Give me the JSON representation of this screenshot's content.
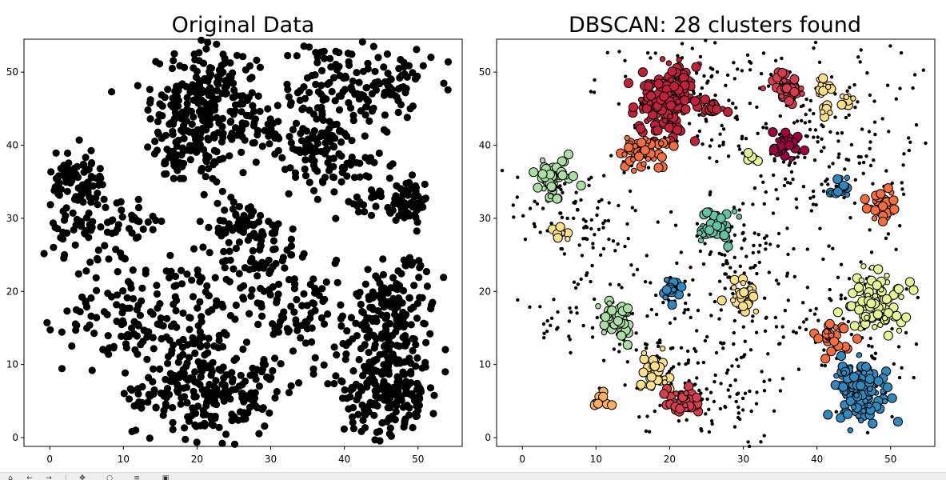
{
  "chart_data": [
    {
      "type": "scatter",
      "title": "Original Data",
      "xlabel": "",
      "ylabel": "",
      "xlim": [
        -3.5,
        56
      ],
      "ylim": [
        -1.2,
        54.5
      ],
      "xticks": [
        0,
        10,
        20,
        30,
        40,
        50
      ],
      "yticks": [
        0,
        10,
        20,
        30,
        40,
        50
      ],
      "grid": false,
      "marker_color": "#000000",
      "clusters": [
        {
          "center": [
            21,
            46
          ],
          "spread": 3.6,
          "n": 220
        },
        {
          "center": [
            18,
            39
          ],
          "spread": 2.2,
          "n": 70
        },
        {
          "center": [
            27,
            45
          ],
          "spread": 3.0,
          "n": 40
        },
        {
          "center": [
            38,
            48
          ],
          "spread": 3.5,
          "n": 90
        },
        {
          "center": [
            46,
            48
          ],
          "spread": 3.0,
          "n": 70
        },
        {
          "center": [
            36,
            40
          ],
          "spread": 3.0,
          "n": 100
        },
        {
          "center": [
            43,
            35
          ],
          "spread": 3.0,
          "n": 50
        },
        {
          "center": [
            49,
            32
          ],
          "spread": 1.8,
          "n": 50
        },
        {
          "center": [
            4,
            35
          ],
          "spread": 1.8,
          "n": 80
        },
        {
          "center": [
            4,
            28
          ],
          "spread": 2.3,
          "n": 40
        },
        {
          "center": [
            10,
            28
          ],
          "spread": 2.6,
          "n": 40
        },
        {
          "center": [
            26,
            29
          ],
          "spread": 1.6,
          "n": 60
        },
        {
          "center": [
            30,
            25
          ],
          "spread": 3.0,
          "n": 40
        },
        {
          "center": [
            22,
            20
          ],
          "spread": 4.0,
          "n": 70
        },
        {
          "center": [
            33,
            19
          ],
          "spread": 3.5,
          "n": 70
        },
        {
          "center": [
            13,
            16
          ],
          "spread": 3.5,
          "n": 80
        },
        {
          "center": [
            4,
            16
          ],
          "spread": 3.0,
          "n": 30
        },
        {
          "center": [
            47,
            18
          ],
          "spread": 3.0,
          "n": 130
        },
        {
          "center": [
            42,
            14
          ],
          "spread": 3.0,
          "n": 50
        },
        {
          "center": [
            19,
            9
          ],
          "spread": 3.0,
          "n": 70
        },
        {
          "center": [
            22,
            5
          ],
          "spread": 3.5,
          "n": 120
        },
        {
          "center": [
            28,
            6
          ],
          "spread": 3.0,
          "n": 50
        },
        {
          "center": [
            12,
            5
          ],
          "spread": 1.5,
          "n": 20
        },
        {
          "center": [
            46,
            6
          ],
          "spread": 3.0,
          "n": 170
        },
        {
          "center": [
            47,
            11
          ],
          "spread": 2.0,
          "n": 40
        }
      ]
    },
    {
      "type": "scatter",
      "title": "DBSCAN: 28 clusters found",
      "xlabel": "",
      "ylabel": "",
      "xlim": [
        -3.5,
        56
      ],
      "ylim": [
        -1.2,
        54.5
      ],
      "xticks": [
        0,
        10,
        20,
        30,
        40,
        50
      ],
      "yticks": [
        0,
        10,
        20,
        30,
        40,
        50
      ],
      "grid": false,
      "noise_color": "#000000",
      "noise": [
        {
          "center": [
            21,
            46
          ],
          "spread": 6.0,
          "n": 60
        },
        {
          "center": [
            27,
            45
          ],
          "spread": 4.0,
          "n": 40
        },
        {
          "center": [
            42,
            45
          ],
          "spread": 7.0,
          "n": 110
        },
        {
          "center": [
            38,
            37
          ],
          "spread": 5.0,
          "n": 80
        },
        {
          "center": [
            48,
            33
          ],
          "spread": 3.0,
          "n": 30
        },
        {
          "center": [
            5,
            31
          ],
          "spread": 4.0,
          "n": 50
        },
        {
          "center": [
            10,
            28
          ],
          "spread": 2.6,
          "n": 40
        },
        {
          "center": [
            29,
            25
          ],
          "spread": 3.0,
          "n": 50
        },
        {
          "center": [
            20,
            19
          ],
          "spread": 6.0,
          "n": 70
        },
        {
          "center": [
            32,
            18
          ],
          "spread": 4.5,
          "n": 50
        },
        {
          "center": [
            5,
            16
          ],
          "spread": 3.0,
          "n": 30
        },
        {
          "center": [
            45,
            15
          ],
          "spread": 5.0,
          "n": 70
        },
        {
          "center": [
            20,
            8
          ],
          "spread": 5.0,
          "n": 60
        },
        {
          "center": [
            27,
            5
          ],
          "spread": 4.0,
          "n": 60
        },
        {
          "center": [
            46,
            8
          ],
          "spread": 3.0,
          "n": 20
        }
      ],
      "clusters": [
        {
          "center": [
            20,
            46
          ],
          "spread": 2.2,
          "n": 170,
          "color": "#c0223b"
        },
        {
          "center": [
            26,
            45
          ],
          "spread": 0.7,
          "n": 22,
          "color": "#c0223b"
        },
        {
          "center": [
            36,
            48
          ],
          "spread": 1.0,
          "n": 40,
          "color": "#d53e4f"
        },
        {
          "center": [
            41,
            48
          ],
          "spread": 0.6,
          "n": 12,
          "color": "#fee08b"
        },
        {
          "center": [
            44,
            46
          ],
          "spread": 0.6,
          "n": 10,
          "color": "#fee08b"
        },
        {
          "center": [
            41,
            45
          ],
          "spread": 0.5,
          "n": 8,
          "color": "#fee08b"
        },
        {
          "center": [
            16,
            39
          ],
          "spread": 1.2,
          "n": 50,
          "color": "#f46d43"
        },
        {
          "center": [
            20,
            40
          ],
          "spread": 0.5,
          "n": 6,
          "color": "#f46d43"
        },
        {
          "center": [
            36,
            40
          ],
          "spread": 1.0,
          "n": 28,
          "color": "#9e0142"
        },
        {
          "center": [
            31,
            38
          ],
          "spread": 0.5,
          "n": 6,
          "color": "#e6f598"
        },
        {
          "center": [
            43,
            34
          ],
          "spread": 0.9,
          "n": 18,
          "color": "#3288bd"
        },
        {
          "center": [
            49,
            32
          ],
          "spread": 1.1,
          "n": 40,
          "color": "#f46d43"
        },
        {
          "center": [
            4,
            36
          ],
          "spread": 1.1,
          "n": 45,
          "color": "#abdda4"
        },
        {
          "center": [
            4,
            33
          ],
          "spread": 0.5,
          "n": 6,
          "color": "#abdda4"
        },
        {
          "center": [
            5,
            28
          ],
          "spread": 0.6,
          "n": 10,
          "color": "#fee08b"
        },
        {
          "center": [
            26,
            29
          ],
          "spread": 1.2,
          "n": 50,
          "color": "#66c2a5"
        },
        {
          "center": [
            20,
            20
          ],
          "spread": 0.8,
          "n": 18,
          "color": "#3288bd"
        },
        {
          "center": [
            30,
            19
          ],
          "spread": 1.0,
          "n": 28,
          "color": "#fee08b"
        },
        {
          "center": [
            13,
            16
          ],
          "spread": 1.3,
          "n": 55,
          "color": "#abdda4"
        },
        {
          "center": [
            48,
            18
          ],
          "spread": 1.9,
          "n": 90,
          "color": "#e6f598"
        },
        {
          "center": [
            42,
            14
          ],
          "spread": 1.1,
          "n": 28,
          "color": "#f46d43"
        },
        {
          "center": [
            18,
            9
          ],
          "spread": 1.2,
          "n": 30,
          "color": "#fee08b"
        },
        {
          "center": [
            11,
            5
          ],
          "spread": 0.6,
          "n": 10,
          "color": "#fdae61"
        },
        {
          "center": [
            22,
            5
          ],
          "spread": 1.1,
          "n": 40,
          "color": "#d53e4f"
        },
        {
          "center": [
            46,
            6
          ],
          "spread": 2.0,
          "n": 120,
          "color": "#3288bd"
        },
        {
          "center": [
            44,
            9
          ],
          "spread": 0.6,
          "n": 10,
          "color": "#3288bd"
        }
      ]
    }
  ]
}
